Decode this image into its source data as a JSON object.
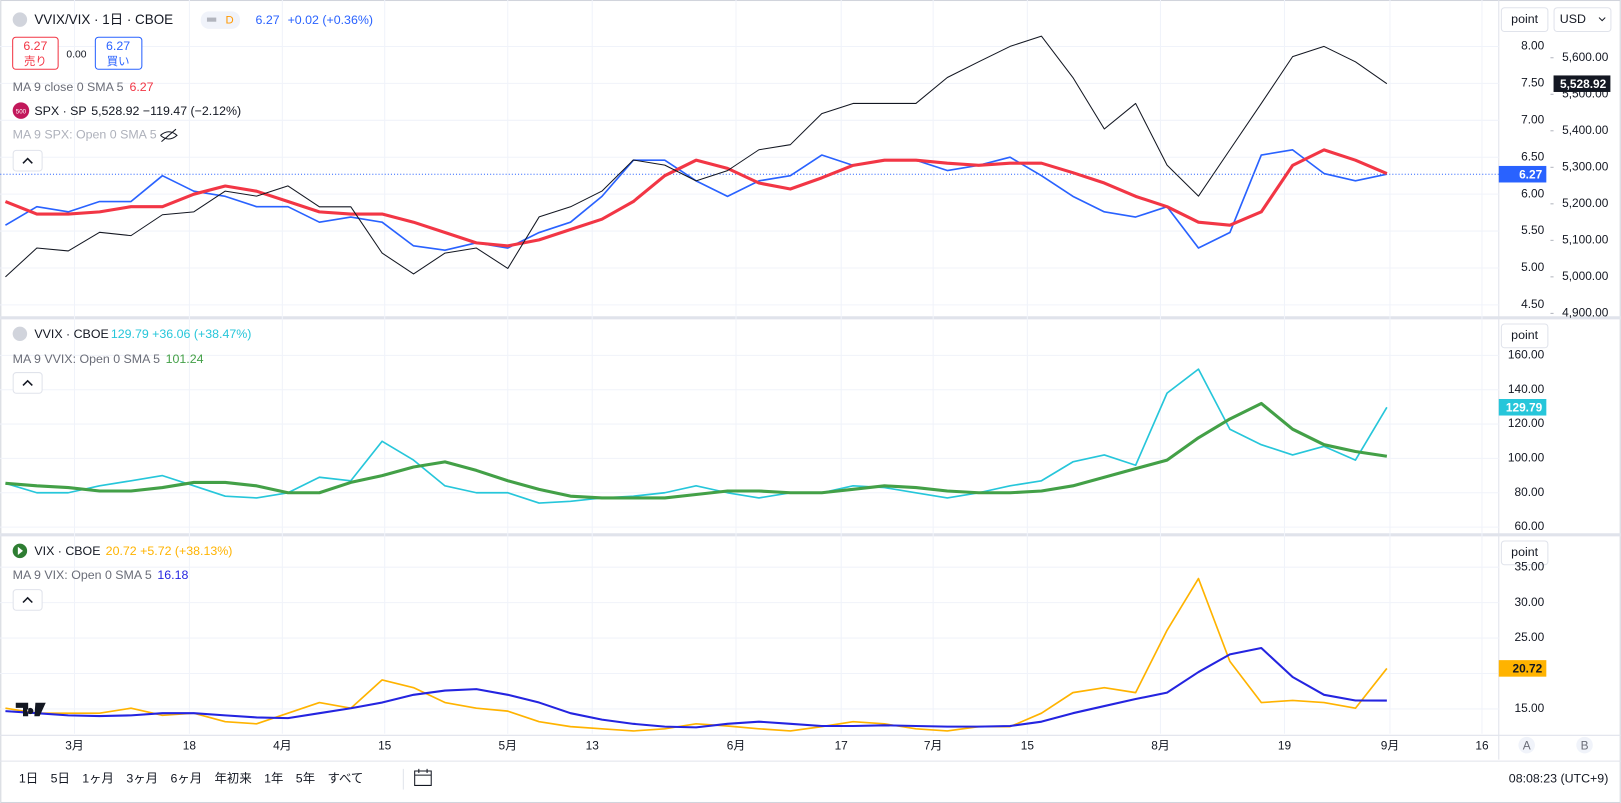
{
  "ui": {
    "symbol": "VVIX/VIX · 1日 · CBOE",
    "badge": "D",
    "price": "6.27",
    "change": "+0.02 (+0.36%)",
    "sell_price": "6.27",
    "sell": "売り",
    "spread": "0.00",
    "buy_price": "6.27",
    "buy": "買い",
    "ma_main": "MA 9 close 0 SMA 5",
    "ma_main_value": "6.27",
    "spx_icon": "500",
    "spx": "SPX · SP",
    "spx_quote": "5,528.92 −119.47 (−2.12%)",
    "ma_spx": "MA 9 SPX: Open 0 SMA 5",
    "vvix": "VVIX · CBOE",
    "vvix_quote": "129.79 +36.06 (+38.47%)",
    "ma_vvix": "MA 9 VVIX: Open 0 SMA 5",
    "ma_vvix_value": "101.24",
    "vix": "VIX · CBOE",
    "vix_quote": "20.72 +5.72 (+38.13%)",
    "ma_vix": "MA 9 VIX: Open 0 SMA 5",
    "ma_vix_value": "16.18",
    "point": "point",
    "currency": "USD",
    "ranges": [
      "1日",
      "5日",
      "1ヶ月",
      "3ヶ月",
      "6ヶ月",
      "年初来",
      "1年",
      "5年",
      "すべて"
    ],
    "clock": "08:08:23 (UTC+9)",
    "scale_a": "A",
    "scale_b": "B"
  },
  "chart_data": [
    {
      "type": "line",
      "x": [
        0,
        1,
        2,
        3,
        4,
        5,
        6,
        7,
        8,
        9,
        10,
        11,
        12,
        13,
        14,
        15,
        16,
        17,
        18,
        19,
        20,
        21,
        22,
        23,
        24,
        25,
        26,
        27,
        28,
        29,
        30,
        31,
        32,
        33,
        34,
        35,
        36,
        37,
        38,
        39,
        40,
        41,
        42,
        43,
        44
      ],
      "xlim": [
        0,
        47.5
      ],
      "ylim": [
        4.36,
        8.56
      ],
      "yticks": [
        {
          "value": 4.5,
          "label": "4.50"
        },
        {
          "value": 5,
          "label": "5.00"
        },
        {
          "value": 5.5,
          "label": "5.50"
        },
        {
          "value": 6,
          "label": "6.00"
        },
        {
          "value": 6.5,
          "label": "6.50"
        },
        {
          "value": 7,
          "label": "7.00"
        },
        {
          "value": 7.5,
          "label": "7.50"
        },
        {
          "value": 8,
          "label": "8.00"
        }
      ],
      "y2lim": [
        4895,
        5744
      ],
      "y2ticks": [
        {
          "value": 4900,
          "label": "4,900.00"
        },
        {
          "value": 5000,
          "label": "5,000.00"
        },
        {
          "value": 5100,
          "label": "5,100.00"
        },
        {
          "value": 5200,
          "label": "5,200.00"
        },
        {
          "value": 5300,
          "label": "5,300.00"
        },
        {
          "value": 5400,
          "label": "5,400.00"
        },
        {
          "value": 5500,
          "label": "5,500.00"
        },
        {
          "value": 5600,
          "label": "5,600.00"
        }
      ],
      "series": [
        {
          "color": "#2962ff",
          "price_tag": "6.27",
          "price_line": true,
          "values": [
            5.58,
            5.83,
            5.76,
            5.9,
            5.9,
            6.25,
            6.04,
            5.97,
            5.83,
            5.83,
            5.62,
            5.69,
            5.62,
            5.3,
            5.24,
            5.34,
            5.27,
            5.48,
            5.62,
            5.97,
            6.46,
            6.46,
            6.18,
            5.97,
            6.18,
            6.25,
            6.53,
            6.39,
            6.46,
            6.46,
            6.32,
            6.39,
            6.5,
            6.25,
            5.97,
            5.76,
            5.69,
            5.83,
            5.27,
            5.48,
            6.53,
            6.6,
            6.28,
            6.18,
            6.27
          ]
        },
        {
          "color": "#f23645",
          "width": 3,
          "values": [
            5.9,
            5.73,
            5.73,
            5.76,
            5.83,
            5.83,
            6.0,
            6.11,
            6.04,
            5.9,
            5.76,
            5.73,
            5.73,
            5.62,
            5.48,
            5.34,
            5.3,
            5.38,
            5.52,
            5.66,
            5.9,
            6.25,
            6.46,
            6.35,
            6.15,
            6.07,
            6.22,
            6.39,
            6.46,
            6.46,
            6.42,
            6.39,
            6.42,
            6.42,
            6.29,
            6.15,
            5.97,
            5.83,
            5.62,
            5.58,
            5.76,
            6.39,
            6.6,
            6.46,
            6.28
          ]
        },
        {
          "color": "#131722",
          "axis": "y2",
          "width": 1,
          "price_tag": "5,528.92",
          "values": [
            5000,
            5079,
            5071,
            5122,
            5113,
            5170,
            5178,
            5235,
            5221,
            5249,
            5192,
            5192,
            5065,
            5008,
            5065,
            5079,
            5023,
            5164,
            5192,
            5235,
            5320,
            5306,
            5263,
            5291,
            5348,
            5362,
            5447,
            5475,
            5475,
            5475,
            5546,
            5589,
            5631,
            5659,
            5546,
            5405,
            5475,
            5306,
            5221,
            5348,
            5475,
            5603,
            5631,
            5589,
            5528.92
          ]
        }
      ]
    },
    {
      "type": "line",
      "x": [
        0,
        1,
        2,
        3,
        4,
        5,
        6,
        7,
        8,
        9,
        10,
        11,
        12,
        13,
        14,
        15,
        16,
        17,
        18,
        19,
        20,
        21,
        22,
        23,
        24,
        25,
        26,
        27,
        28,
        29,
        30,
        31,
        32,
        33,
        34,
        35,
        36,
        37,
        38,
        39,
        40,
        41,
        42,
        43,
        44
      ],
      "xlim": [
        0,
        47.5
      ],
      "ylim": [
        57,
        180.4
      ],
      "yticks": [
        {
          "value": 60,
          "label": "60.00"
        },
        {
          "value": 80,
          "label": "80.00"
        },
        {
          "value": 100,
          "label": "100.00"
        },
        {
          "value": 120,
          "label": "120.00"
        },
        {
          "value": 140,
          "label": "140.00"
        },
        {
          "value": 160,
          "label": "160.00"
        }
      ],
      "series": [
        {
          "color": "#26c6da",
          "price_tag": "129.79",
          "values": [
            85.5,
            80,
            80,
            84,
            87,
            90,
            84,
            78,
            77,
            80,
            89,
            87,
            110,
            99,
            84,
            80,
            80,
            74,
            75,
            77,
            78,
            80,
            84,
            80,
            77,
            80,
            80,
            84,
            83,
            80,
            77,
            80,
            84,
            87,
            98,
            102,
            96,
            138,
            152,
            117,
            108,
            102,
            107,
            99,
            129.79
          ]
        },
        {
          "color": "#43a047",
          "width": 3,
          "values": [
            85.5,
            84,
            83,
            81,
            81,
            83,
            86,
            86,
            84,
            80,
            80,
            86,
            90,
            95,
            98,
            93,
            87,
            82,
            78,
            77,
            77,
            77,
            79,
            81,
            81,
            80,
            80,
            82,
            84,
            83,
            81,
            80,
            80,
            81,
            84,
            89,
            94,
            99,
            112,
            123,
            132,
            117,
            108,
            104,
            101.24
          ]
        }
      ]
    },
    {
      "type": "line",
      "x": [
        0,
        1,
        2,
        3,
        4,
        5,
        6,
        7,
        8,
        9,
        10,
        11,
        12,
        13,
        14,
        15,
        16,
        17,
        18,
        19,
        20,
        21,
        22,
        23,
        24,
        25,
        26,
        27,
        28,
        29,
        30,
        31,
        32,
        33,
        34,
        35,
        36,
        37,
        38,
        39,
        40,
        41,
        42,
        43,
        44
      ],
      "xlim": [
        0,
        47.5
      ],
      "ylim": [
        11.5,
        39.2
      ],
      "yticks": [
        {
          "value": 15,
          "label": "15.00"
        },
        {
          "value": 20,
          "label": "20.00"
        },
        {
          "value": 25,
          "label": "25.00"
        },
        {
          "value": 30,
          "label": "30.00"
        },
        {
          "value": 35,
          "label": "35.00"
        }
      ],
      "xticks": [
        {
          "value": 2.2,
          "label": "3月"
        },
        {
          "value": 5.86,
          "label": "18"
        },
        {
          "value": 8.82,
          "label": "4月"
        },
        {
          "value": 12.08,
          "label": "15"
        },
        {
          "value": 16.0,
          "label": "5月"
        },
        {
          "value": 18.69,
          "label": "13"
        },
        {
          "value": 23.27,
          "label": "6月"
        },
        {
          "value": 26.62,
          "label": "17"
        },
        {
          "value": 29.55,
          "label": "7月"
        },
        {
          "value": 32.55,
          "label": "15"
        },
        {
          "value": 36.79,
          "label": "8月"
        },
        {
          "value": 40.74,
          "label": "19"
        },
        {
          "value": 44.1,
          "label": "9月"
        },
        {
          "value": 47.03,
          "label": "16"
        }
      ],
      "series": [
        {
          "color": "#ffb300",
          "price_tag": "20.72",
          "values": [
            15.1,
            14.4,
            14.4,
            14.4,
            15.1,
            14.1,
            14.4,
            13.2,
            12.9,
            14.4,
            15.9,
            15.1,
            19.1,
            18.0,
            15.9,
            15.1,
            14.7,
            13.2,
            12.5,
            12.2,
            11.9,
            12.2,
            12.9,
            12.6,
            12.2,
            11.9,
            12.5,
            13.2,
            12.9,
            12.2,
            11.9,
            12.5,
            12.5,
            14.4,
            17.3,
            18.0,
            17.3,
            26.1,
            33.4,
            21.7,
            15.9,
            16.2,
            15.9,
            15.1,
            20.72
          ]
        },
        {
          "color": "#2424e0",
          "width": 2,
          "values": [
            14.7,
            14.4,
            14.1,
            14.0,
            14.1,
            14.4,
            14.4,
            14.1,
            13.8,
            13.7,
            14.4,
            15.1,
            15.9,
            17.0,
            17.6,
            17.8,
            17.0,
            15.9,
            14.4,
            13.5,
            12.9,
            12.5,
            12.4,
            12.9,
            13.2,
            12.9,
            12.6,
            12.6,
            12.7,
            12.6,
            12.5,
            12.5,
            12.6,
            13.2,
            14.4,
            15.4,
            16.4,
            17.3,
            20.2,
            22.7,
            23.6,
            19.5,
            17.0,
            16.2,
            16.18
          ]
        }
      ]
    }
  ]
}
